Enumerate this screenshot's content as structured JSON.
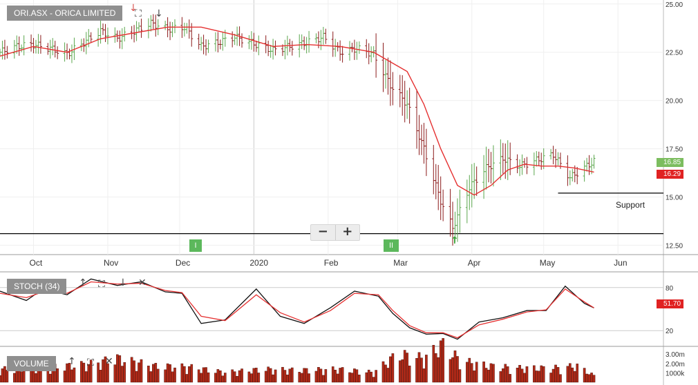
{
  "price_panel": {
    "title": "ORI.ASX - ORICA LIMITED",
    "tags": {
      "last": "16.85",
      "ma": "16.29"
    },
    "support_label": "Support",
    "zoom": {
      "minus": "−",
      "plus": "+"
    },
    "markers": [
      "I",
      "II"
    ]
  },
  "stoch_panel": {
    "title": "STOCH (34)",
    "tag": "51.70"
  },
  "volume_panel": {
    "title": "VOLUME"
  },
  "colors": {
    "up": "#5aa64c",
    "down": "#8b1a1a",
    "ma": "#e53030",
    "stoch_k": "#111111",
    "stoch_d": "#e53030",
    "volume": "#b22a18",
    "tag_up": "#7cbd5f",
    "tag_down": "#e02222"
  },
  "chart_data": [
    {
      "type": "line",
      "series_kind": "ohlc",
      "x": [
        "Oct",
        "Nov",
        "Dec",
        "2020",
        "Feb",
        "Mar",
        "Apr",
        "May",
        "Jun"
      ],
      "yticks": [
        12.5,
        15.0,
        17.5,
        20.0,
        22.5,
        25.0
      ],
      "ylim": [
        12.3,
        25.1
      ],
      "support": 15.2,
      "baseline": 13.1,
      "close_path": [
        [
          "2019-09-17",
          22.5
        ],
        [
          "2019-09-24",
          22.8
        ],
        [
          "2019-10-01",
          22.9
        ],
        [
          "2019-10-08",
          22.7
        ],
        [
          "2019-10-15",
          22.4
        ],
        [
          "2019-10-22",
          23.0
        ],
        [
          "2019-10-29",
          23.6
        ],
        [
          "2019-11-05",
          23.2
        ],
        [
          "2019-11-12",
          23.6
        ],
        [
          "2019-11-19",
          24.0
        ],
        [
          "2019-11-26",
          23.7
        ],
        [
          "2019-12-03",
          23.8
        ],
        [
          "2019-12-10",
          22.8
        ],
        [
          "2019-12-17",
          23.0
        ],
        [
          "2019-12-24",
          23.3
        ],
        [
          "2020-01-02",
          22.9
        ],
        [
          "2020-01-09",
          22.6
        ],
        [
          "2020-01-16",
          22.8
        ],
        [
          "2020-01-23",
          23.0
        ],
        [
          "2020-01-30",
          23.3
        ],
        [
          "2020-02-06",
          22.5
        ],
        [
          "2020-02-13",
          22.7
        ],
        [
          "2020-02-20",
          22.4
        ],
        [
          "2020-02-27",
          20.8
        ],
        [
          "2020-03-05",
          19.8
        ],
        [
          "2020-03-12",
          17.5
        ],
        [
          "2020-03-19",
          14.8
        ],
        [
          "2020-03-24",
          13.4
        ],
        [
          "2020-03-31",
          15.5
        ],
        [
          "2020-04-07",
          16.5
        ],
        [
          "2020-04-14",
          17.0
        ],
        [
          "2020-04-21",
          16.6
        ],
        [
          "2020-04-28",
          16.9
        ],
        [
          "2020-05-05",
          17.2
        ],
        [
          "2020-05-12",
          16.0
        ],
        [
          "2020-05-19",
          16.6
        ],
        [
          "2020-05-22",
          16.85
        ]
      ],
      "ma_path": [
        [
          "2019-09-17",
          22.3
        ],
        [
          "2019-10-01",
          22.8
        ],
        [
          "2019-10-15",
          22.5
        ],
        [
          "2019-10-29",
          23.2
        ],
        [
          "2019-11-12",
          23.5
        ],
        [
          "2019-11-26",
          23.8
        ],
        [
          "2019-12-10",
          23.8
        ],
        [
          "2019-12-24",
          23.4
        ],
        [
          "2020-01-09",
          22.8
        ],
        [
          "2020-01-23",
          22.9
        ],
        [
          "2020-02-06",
          22.8
        ],
        [
          "2020-02-20",
          22.5
        ],
        [
          "2020-03-05",
          21.5
        ],
        [
          "2020-03-12",
          19.8
        ],
        [
          "2020-03-19",
          17.5
        ],
        [
          "2020-03-26",
          15.6
        ],
        [
          "2020-04-02",
          15.1
        ],
        [
          "2020-04-09",
          15.6
        ],
        [
          "2020-04-16",
          16.4
        ],
        [
          "2020-04-23",
          16.7
        ],
        [
          "2020-04-30",
          16.6
        ],
        [
          "2020-05-07",
          16.6
        ],
        [
          "2020-05-14",
          16.5
        ],
        [
          "2020-05-22",
          16.29
        ]
      ]
    },
    {
      "type": "line",
      "title": "STOCH (34)",
      "yticks": [
        20,
        80
      ],
      "ylim": [
        0,
        100
      ],
      "k": [
        [
          "2019-09-17",
          75
        ],
        [
          "2019-09-28",
          62
        ],
        [
          "2019-10-05",
          78
        ],
        [
          "2019-10-15",
          70
        ],
        [
          "2019-10-25",
          92
        ],
        [
          "2019-11-05",
          83
        ],
        [
          "2019-11-15",
          88
        ],
        [
          "2019-11-25",
          74
        ],
        [
          "2019-12-02",
          72
        ],
        [
          "2019-12-10",
          30
        ],
        [
          "2019-12-20",
          35
        ],
        [
          "2020-01-02",
          78
        ],
        [
          "2020-01-12",
          40
        ],
        [
          "2020-01-22",
          30
        ],
        [
          "2020-02-02",
          52
        ],
        [
          "2020-02-12",
          75
        ],
        [
          "2020-02-22",
          68
        ],
        [
          "2020-02-28",
          44
        ],
        [
          "2020-03-06",
          24
        ],
        [
          "2020-03-13",
          15
        ],
        [
          "2020-03-20",
          16
        ],
        [
          "2020-03-26",
          8
        ],
        [
          "2020-04-04",
          32
        ],
        [
          "2020-04-14",
          38
        ],
        [
          "2020-04-24",
          48
        ],
        [
          "2020-05-02",
          48
        ],
        [
          "2020-05-10",
          82
        ],
        [
          "2020-05-18",
          58
        ],
        [
          "2020-05-22",
          51.7
        ]
      ],
      "d": [
        [
          "2019-09-17",
          72
        ],
        [
          "2019-09-28",
          66
        ],
        [
          "2019-10-05",
          74
        ],
        [
          "2019-10-15",
          72
        ],
        [
          "2019-10-25",
          88
        ],
        [
          "2019-11-05",
          85
        ],
        [
          "2019-11-15",
          86
        ],
        [
          "2019-11-25",
          76
        ],
        [
          "2019-12-02",
          73
        ],
        [
          "2019-12-10",
          40
        ],
        [
          "2019-12-20",
          34
        ],
        [
          "2020-01-02",
          70
        ],
        [
          "2020-01-12",
          45
        ],
        [
          "2020-01-22",
          32
        ],
        [
          "2020-02-02",
          48
        ],
        [
          "2020-02-12",
          72
        ],
        [
          "2020-02-22",
          70
        ],
        [
          "2020-02-28",
          48
        ],
        [
          "2020-03-06",
          27
        ],
        [
          "2020-03-13",
          17
        ],
        [
          "2020-03-20",
          17
        ],
        [
          "2020-03-26",
          10
        ],
        [
          "2020-04-04",
          28
        ],
        [
          "2020-04-14",
          36
        ],
        [
          "2020-04-24",
          46
        ],
        [
          "2020-05-02",
          49
        ],
        [
          "2020-05-10",
          78
        ],
        [
          "2020-05-18",
          60
        ],
        [
          "2020-05-22",
          51.7
        ]
      ]
    },
    {
      "type": "bar",
      "title": "VOLUME",
      "yticks": [
        "1000k",
        "2.00m",
        "3.00m"
      ],
      "ylim": [
        0,
        3.6
      ],
      "levels": [
        [
          "2019-09-17",
          1.2
        ],
        [
          "2019-10-05",
          1.3
        ],
        [
          "2019-10-25",
          1.7
        ],
        [
          "2019-11-05",
          2.2
        ],
        [
          "2019-11-20",
          1.5
        ],
        [
          "2019-12-05",
          1.4
        ],
        [
          "2019-12-20",
          0.9
        ],
        [
          "2020-01-05",
          1.2
        ],
        [
          "2020-01-20",
          1.1
        ],
        [
          "2020-02-05",
          1.2
        ],
        [
          "2020-02-20",
          0.9
        ],
        [
          "2020-03-01",
          2.6
        ],
        [
          "2020-03-12",
          2.2
        ],
        [
          "2020-03-20",
          3.5
        ],
        [
          "2020-03-27",
          2.0
        ],
        [
          "2020-04-08",
          1.5
        ],
        [
          "2020-04-20",
          1.3
        ],
        [
          "2020-05-05",
          1.3
        ],
        [
          "2020-05-15",
          1.5
        ],
        [
          "2020-05-22",
          0.6
        ]
      ]
    }
  ]
}
